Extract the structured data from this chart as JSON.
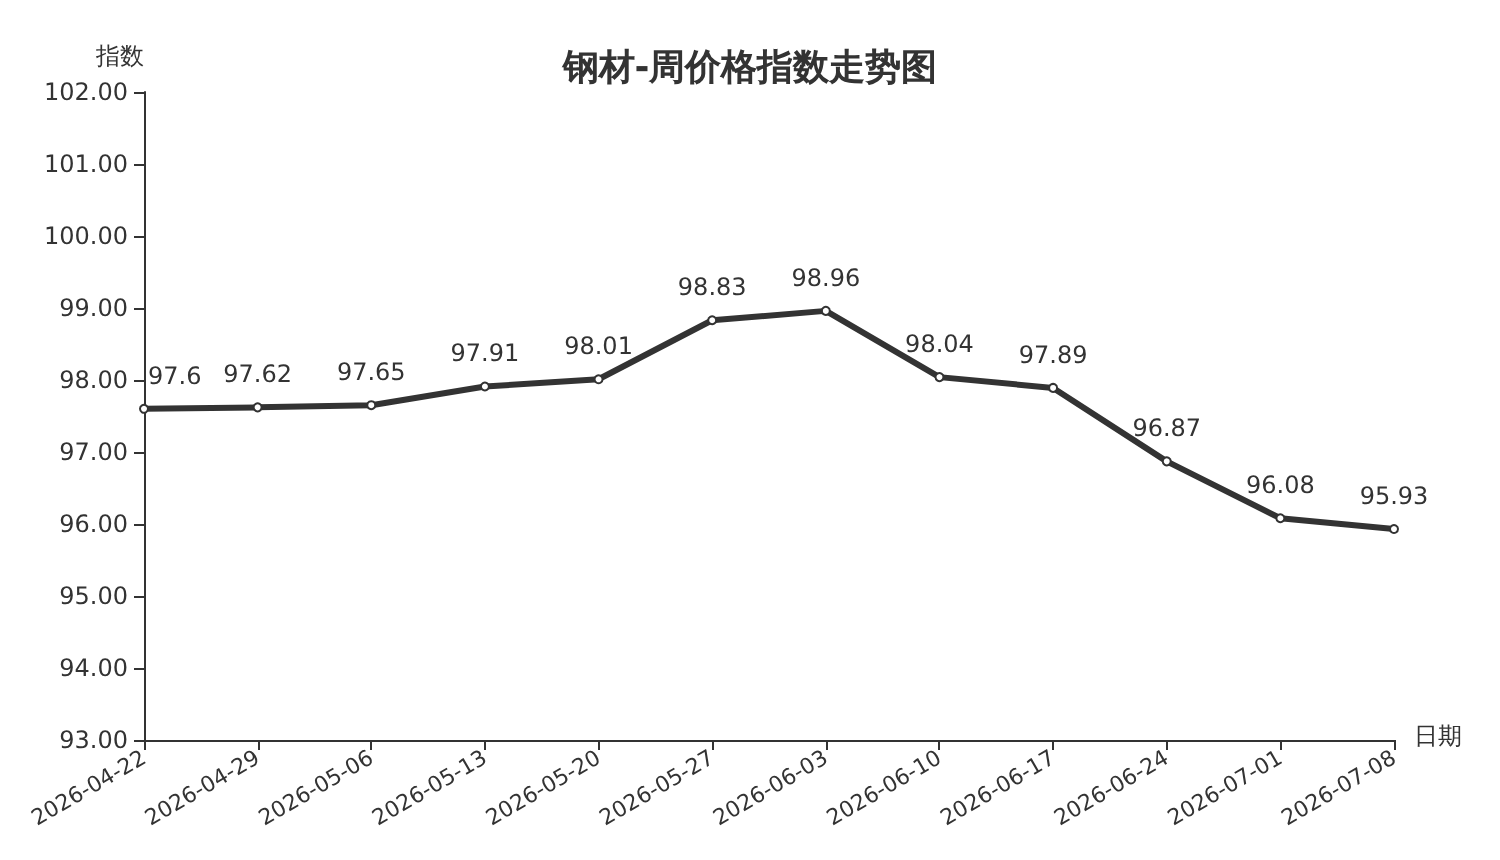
{
  "chart_data": {
    "type": "line",
    "title": "钢材-周价格指数走势图",
    "xlabel": "日期",
    "ylabel": "指数",
    "categories": [
      "2026-04-22",
      "2026-04-29",
      "2026-05-06",
      "2026-05-13",
      "2026-05-20",
      "2026-05-27",
      "2026-06-03",
      "2026-06-10",
      "2026-06-17",
      "2026-06-24",
      "2026-07-01",
      "2026-07-08"
    ],
    "series": [
      {
        "color": "#333333",
        "values": [
          97.6,
          97.62,
          97.65,
          97.91,
          98.01,
          98.83,
          98.96,
          98.04,
          97.89,
          96.87,
          96.08,
          95.93
        ]
      }
    ],
    "ylim": [
      93,
      102
    ],
    "yticks": [
      {
        "value": 93,
        "label": "93.00"
      },
      {
        "value": 94,
        "label": "94.00"
      },
      {
        "value": 95,
        "label": "95.00"
      },
      {
        "value": 96,
        "label": "96.00"
      },
      {
        "value": 97,
        "label": "97.00"
      },
      {
        "value": 98,
        "label": "98.00"
      },
      {
        "value": 99,
        "label": "99.00"
      },
      {
        "value": 100,
        "label": "100.00"
      },
      {
        "value": 101,
        "label": "101.00"
      },
      {
        "value": 102,
        "label": "102.00"
      }
    ],
    "grid": false,
    "marker": "circle",
    "line_style": "solid",
    "data_labels": true
  }
}
